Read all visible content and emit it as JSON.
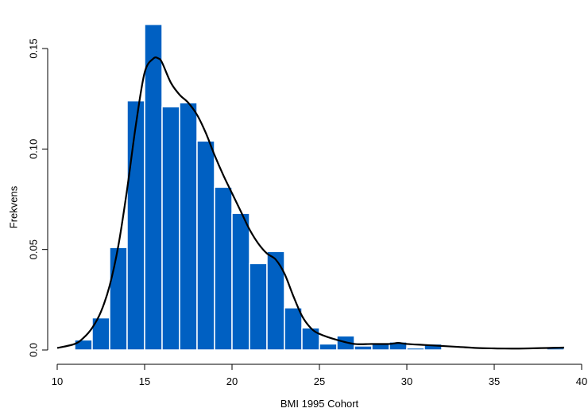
{
  "chart_data": {
    "type": "bar",
    "subtype": "histogram-with-density",
    "title": "",
    "xlabel": "BMI 1995 Cohort",
    "ylabel": "Frekvens",
    "xlim": [
      10,
      40
    ],
    "ylim": [
      0,
      0.16
    ],
    "x_ticks": [
      10,
      15,
      20,
      25,
      30,
      35,
      40
    ],
    "x_tick_labels": [
      "10",
      "15",
      "20",
      "25",
      "30",
      "35",
      "40"
    ],
    "y_ticks": [
      0.0,
      0.05,
      0.1,
      0.15
    ],
    "y_tick_labels": [
      "0.0",
      "0.05",
      "0.10",
      "0.15"
    ],
    "bin_width": 1,
    "bins": [
      {
        "start": 11,
        "end": 12,
        "value": 0.005
      },
      {
        "start": 12,
        "end": 13,
        "value": 0.016
      },
      {
        "start": 13,
        "end": 14,
        "value": 0.051
      },
      {
        "start": 14,
        "end": 15,
        "value": 0.124
      },
      {
        "start": 15,
        "end": 16,
        "value": 0.162
      },
      {
        "start": 16,
        "end": 17,
        "value": 0.121
      },
      {
        "start": 17,
        "end": 18,
        "value": 0.123
      },
      {
        "start": 18,
        "end": 19,
        "value": 0.104
      },
      {
        "start": 19,
        "end": 20,
        "value": 0.081
      },
      {
        "start": 20,
        "end": 21,
        "value": 0.068
      },
      {
        "start": 21,
        "end": 22,
        "value": 0.043
      },
      {
        "start": 22,
        "end": 23,
        "value": 0.049
      },
      {
        "start": 23,
        "end": 24,
        "value": 0.021
      },
      {
        "start": 24,
        "end": 25,
        "value": 0.011
      },
      {
        "start": 25,
        "end": 26,
        "value": 0.003
      },
      {
        "start": 26,
        "end": 27,
        "value": 0.007
      },
      {
        "start": 27,
        "end": 28,
        "value": 0.002
      },
      {
        "start": 28,
        "end": 29,
        "value": 0.003
      },
      {
        "start": 29,
        "end": 30,
        "value": 0.004
      },
      {
        "start": 30,
        "end": 31,
        "value": 0.001
      },
      {
        "start": 31,
        "end": 32,
        "value": 0.003
      },
      {
        "start": 38,
        "end": 39,
        "value": 0.001
      }
    ],
    "density_curve": {
      "x": [
        10,
        11,
        11.5,
        12,
        12.5,
        13,
        13.5,
        14,
        14.5,
        15,
        15.5,
        15.8,
        16,
        16.5,
        17,
        17.5,
        18,
        18.5,
        19,
        19.5,
        20,
        20.5,
        21,
        21.5,
        22,
        22.5,
        23,
        23.5,
        24,
        24.5,
        25,
        26,
        27,
        28,
        29,
        29.5,
        30,
        31,
        32,
        33,
        34,
        35,
        36,
        37,
        38,
        39
      ],
      "y": [
        0.001,
        0.003,
        0.006,
        0.011,
        0.019,
        0.032,
        0.052,
        0.08,
        0.112,
        0.138,
        0.145,
        0.145,
        0.143,
        0.133,
        0.127,
        0.123,
        0.117,
        0.108,
        0.097,
        0.087,
        0.078,
        0.069,
        0.06,
        0.053,
        0.048,
        0.045,
        0.038,
        0.027,
        0.017,
        0.011,
        0.008,
        0.005,
        0.003,
        0.003,
        0.003,
        0.0035,
        0.003,
        0.0025,
        0.002,
        0.0015,
        0.001,
        0.0008,
        0.0007,
        0.0008,
        0.001,
        0.0012
      ]
    },
    "grid": false,
    "legend": "none",
    "colors": {
      "bar_fill": "#0060c2",
      "bar_edge": "#ffffff",
      "curve": "#000000",
      "axis": "#000000"
    }
  }
}
